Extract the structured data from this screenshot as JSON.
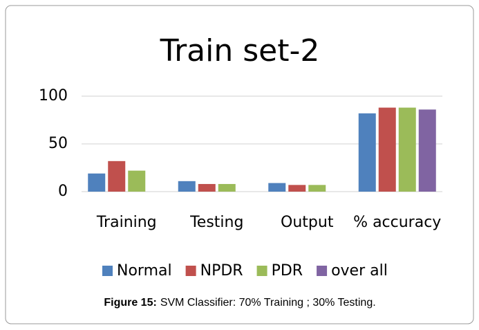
{
  "chart_data": {
    "type": "bar",
    "title": "Train set-2",
    "categories": [
      "Training",
      "Testing",
      "Output",
      "% accuracy"
    ],
    "series": [
      {
        "name": "Normal",
        "color": "#4f81bd",
        "values": [
          19,
          11,
          9,
          82
        ]
      },
      {
        "name": "NPDR",
        "color": "#c0504d",
        "values": [
          32,
          8,
          7,
          88
        ]
      },
      {
        "name": "PDR",
        "color": "#9bbb59",
        "values": [
          22,
          8,
          7,
          88
        ]
      },
      {
        "name": "over all",
        "color": "#8064a2",
        "values": [
          null,
          null,
          null,
          86
        ]
      }
    ],
    "ylim": [
      0,
      100
    ],
    "yticks": [
      0,
      50,
      100
    ],
    "grid": true,
    "legend": "bottom"
  },
  "caption": {
    "label": "Figure 15:",
    "text": "SVM Classifier: 70% Training ; 30% Testing."
  }
}
